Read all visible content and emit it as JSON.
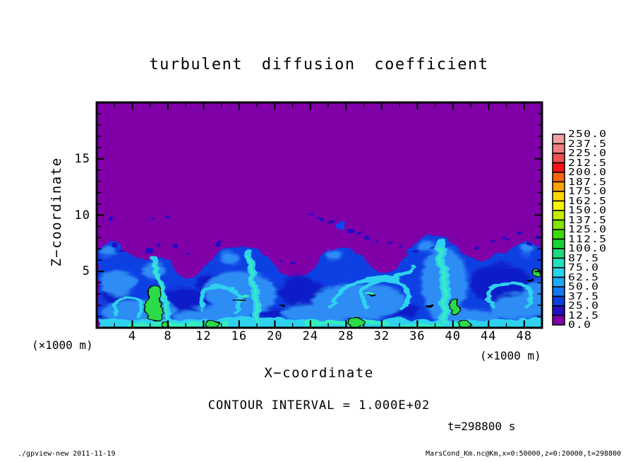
{
  "title": "turbulent diffusion coefficient",
  "axes": {
    "x": {
      "label": "X−coordinate",
      "unit": "(×1000 m)",
      "min": 0,
      "max": 50,
      "tick_labels": [
        4,
        8,
        12,
        16,
        20,
        24,
        28,
        32,
        36,
        40,
        44,
        48
      ],
      "minor_step": 2,
      "major_step": 4
    },
    "z": {
      "label": "Z−coordinate",
      "min": 0,
      "max": 20,
      "tick_labels": [
        5,
        10,
        15
      ],
      "minor_step": 1,
      "major_step": 5
    }
  },
  "colorbar": {
    "levels": [
      "250.0",
      "237.5",
      "225.0",
      "212.5",
      "200.0",
      "187.5",
      "175.0",
      "162.5",
      "150.0",
      "137.5",
      "125.0",
      "112.5",
      "100.0",
      "87.5",
      "75.0",
      "62.5",
      "50.0",
      "37.5",
      "25.0",
      "12.5",
      "0.0"
    ],
    "colors": [
      "#f2a2a2",
      "#ef8080",
      "#ed5151",
      "#f71212",
      "#f8650a",
      "#faa104",
      "#fdd801",
      "#f8f500",
      "#c3ee00",
      "#81e300",
      "#3cd90a",
      "#18d335",
      "#1dd97d",
      "#24dfbd",
      "#27d5ec",
      "#1ea9f4",
      "#1478f2",
      "#0b3fdd",
      "#2310c0",
      "#8000a8"
    ]
  },
  "annotations": {
    "contour_interval": "CONTOUR INTERVAL = 1.000E+02",
    "time": "t=298800 s"
  },
  "footer": {
    "left": "./gpview-new  2011-11-19",
    "right": "MarsCond_Km.nc@Km,x=0:50000,z=0:20000,t=298800"
  },
  "chart_data": {
    "type": "heatmap",
    "title": "turbulent diffusion coefficient",
    "xlabel": "X-coordinate (×1000 m)",
    "ylabel": "Z-coordinate (×1000 m)",
    "x_range": [
      0,
      50
    ],
    "z_range": [
      0,
      20
    ],
    "x_ticks": [
      4,
      8,
      12,
      16,
      20,
      24,
      28,
      32,
      36,
      40,
      44,
      48
    ],
    "z_ticks": [
      5,
      10,
      15
    ],
    "colorbar_levels": [
      0,
      12.5,
      25,
      37.5,
      50,
      62.5,
      75,
      87.5,
      100,
      112.5,
      125,
      137.5,
      150,
      162.5,
      175,
      187.5,
      200,
      212.5,
      225,
      237.5,
      250
    ],
    "contour_interval": 100,
    "time_seconds": 298800,
    "grid": false,
    "legend_position": "right-colorbar",
    "field_summary": "Uniform background value in the lowest bin (0-12.5, purple) everywhere above z ≈ 6×1000 m; a turbulent mixed layer below z ≈ 5-7 containing plumes, filaments and vortices with values ~12.5-87.5 (blues to cyan), local maxima of ~100-137.5 (green patches outlined by the black 100-level contour) near x ≈ 8, 12, 20, 26, 32, 37 and 44; scattered detached blobs of ~12.5-50 between z ≈ 6-10, including a diagonal streak near x ≈ 22-28, z ≈ 8-10."
  }
}
